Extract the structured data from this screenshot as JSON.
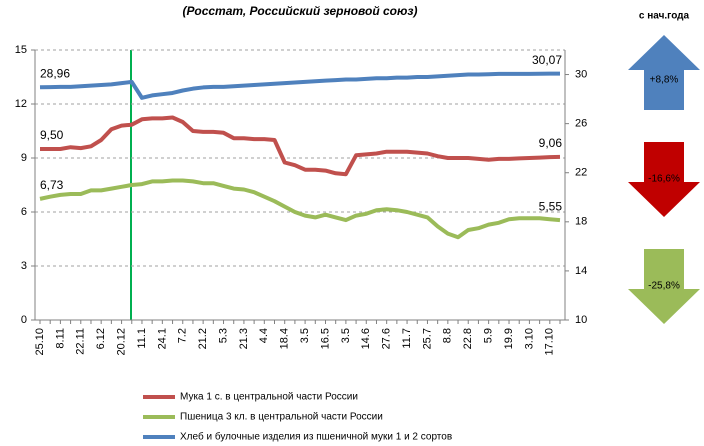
{
  "chart_data": {
    "type": "line",
    "subtitle": "(Росстат, Российский зерновой союз)",
    "categories": [
      "25.10",
      null,
      "8.11",
      null,
      "22.11",
      null,
      "6.12",
      null,
      "20.12",
      null,
      "11.1",
      null,
      "24.1",
      null,
      "7.2",
      null,
      "21.2",
      null,
      "5.3",
      null,
      "21.3",
      null,
      "4.4",
      null,
      "18.4",
      null,
      "3.5",
      null,
      "16.5",
      null,
      "3.5",
      null,
      "14.6",
      null,
      "27.6",
      null,
      "11.7",
      null,
      "25.7",
      null,
      "8.8",
      null,
      "22.8",
      null,
      "5.9",
      null,
      "19.9",
      null,
      "3.10",
      null,
      "17.10",
      null
    ],
    "series": [
      {
        "name": "Мука 1 с. в центральной части России",
        "color": "#c0504d",
        "values": [
          9.5,
          9.5,
          9.5,
          9.6,
          9.55,
          9.65,
          10.0,
          10.6,
          10.8,
          10.85,
          11.15,
          11.2,
          11.2,
          11.25,
          11.0,
          10.5,
          10.45,
          10.45,
          10.4,
          10.1,
          10.1,
          10.05,
          10.05,
          10.0,
          8.75,
          8.6,
          8.35,
          8.35,
          8.3,
          8.15,
          8.1,
          9.15,
          9.2,
          9.25,
          9.35,
          9.35,
          9.35,
          9.3,
          9.25,
          9.1,
          9.0,
          9.0,
          9.0,
          8.95,
          8.9,
          8.95,
          8.95,
          8.98,
          9.0,
          9.02,
          9.05,
          9.06
        ],
        "value_labels": [
          "9,50",
          null,
          null,
          null,
          null,
          null,
          null,
          null,
          null,
          null,
          null,
          null,
          null,
          null,
          null,
          null,
          null,
          null,
          null,
          null,
          null,
          null,
          null,
          null,
          null,
          null,
          null,
          null,
          null,
          null,
          null,
          null,
          null,
          null,
          null,
          null,
          null,
          null,
          null,
          null,
          null,
          null,
          null,
          null,
          null,
          null,
          null,
          null,
          null,
          null,
          null,
          "9,06"
        ]
      },
      {
        "name": "Пшеница 3 кл. в центральной части России",
        "color": "#9bbb59",
        "values": [
          6.73,
          6.85,
          6.95,
          7.0,
          7.0,
          7.2,
          7.2,
          7.3,
          7.4,
          7.5,
          7.55,
          7.7,
          7.7,
          7.75,
          7.75,
          7.7,
          7.6,
          7.6,
          7.45,
          7.3,
          7.25,
          7.1,
          6.85,
          6.6,
          6.3,
          6.0,
          5.8,
          5.7,
          5.85,
          5.7,
          5.55,
          5.8,
          5.9,
          6.1,
          6.15,
          6.1,
          6.0,
          5.85,
          5.7,
          5.2,
          4.8,
          4.6,
          5.0,
          5.1,
          5.3,
          5.4,
          5.6,
          5.65,
          5.65,
          5.65,
          5.6,
          5.55
        ],
        "value_labels": [
          "6,73",
          null,
          null,
          null,
          null,
          null,
          null,
          null,
          null,
          null,
          null,
          null,
          null,
          null,
          null,
          null,
          null,
          null,
          null,
          null,
          null,
          null,
          null,
          null,
          null,
          null,
          null,
          null,
          null,
          null,
          null,
          null,
          null,
          null,
          null,
          null,
          null,
          null,
          null,
          null,
          null,
          null,
          null,
          null,
          null,
          null,
          null,
          null,
          null,
          null,
          null,
          "5,55"
        ]
      },
      {
        "name": "Хлеб и булочные изделия из пшеничной муки 1 и 2 сортов",
        "color": "#4f81bd",
        "axis": "y2",
        "values": [
          28.96,
          28.98,
          29.0,
          29.0,
          29.05,
          29.1,
          29.15,
          29.2,
          29.3,
          29.4,
          28.1,
          28.3,
          28.4,
          28.5,
          28.7,
          28.85,
          28.95,
          29.0,
          29.0,
          29.05,
          29.1,
          29.15,
          29.2,
          29.25,
          29.3,
          29.35,
          29.4,
          29.45,
          29.5,
          29.55,
          29.6,
          29.6,
          29.65,
          29.7,
          29.7,
          29.75,
          29.75,
          29.8,
          29.8,
          29.85,
          29.9,
          29.95,
          30.0,
          30.0,
          30.02,
          30.05,
          30.05,
          30.05,
          30.05,
          30.06,
          30.07,
          30.07
        ],
        "value_labels": [
          "28,96",
          null,
          null,
          null,
          null,
          null,
          null,
          null,
          null,
          null,
          null,
          null,
          null,
          null,
          null,
          null,
          null,
          null,
          null,
          null,
          null,
          null,
          null,
          null,
          null,
          null,
          null,
          null,
          null,
          null,
          null,
          null,
          null,
          null,
          null,
          null,
          null,
          null,
          null,
          null,
          null,
          null,
          null,
          null,
          null,
          null,
          null,
          null,
          null,
          null,
          null,
          "30,07"
        ]
      }
    ],
    "ylim": [
      0,
      15
    ],
    "yticks": [
      0,
      3,
      6,
      9,
      12,
      15
    ],
    "y2lim": [
      10,
      32
    ],
    "y2ticks": [
      10,
      14,
      18,
      22,
      26,
      30
    ],
    "grid": true,
    "legend": "bottom",
    "side_panel": {
      "title": "с нач.года",
      "items": [
        {
          "label": "+8,8%",
          "direction": "up",
          "color": "#4f81bd"
        },
        {
          "label": "-16,6%",
          "direction": "down",
          "color": "#c00000"
        },
        {
          "label": "-25,8%",
          "direction": "down",
          "color": "#9bbb59"
        }
      ]
    }
  }
}
